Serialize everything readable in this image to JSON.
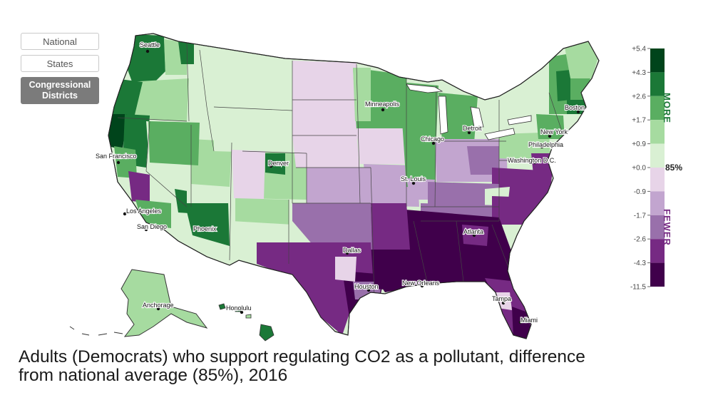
{
  "view_toggle": {
    "national": "National",
    "states": "States",
    "districts_line1": "Congressional",
    "districts_line2": "Districts",
    "active": "Congressional Districts"
  },
  "legend": {
    "ticks": [
      "+5.4",
      "+4.3",
      "+2.6",
      "+1.7",
      "+0.9",
      "+0.0",
      "-0.9",
      "-1.7",
      "-2.6",
      "-4.3",
      "-11.5"
    ],
    "more_label": "MORE",
    "fewer_label": "FEWER",
    "average_label": "85%",
    "colors": [
      "#00441b",
      "#1b7837",
      "#5aae61",
      "#a6dba0",
      "#d9f0d3",
      "#e7d4e8",
      "#c2a5cf",
      "#9970ab",
      "#762a83",
      "#40004b"
    ],
    "more_color": "#1b7837",
    "fewer_color": "#762a83"
  },
  "cities": {
    "seattle": "Seattle",
    "minneapolis": "Minneapolis",
    "boston": "Boston",
    "new_york": "New York",
    "chicago": "Chicago",
    "detroit": "Detroit",
    "philadelphia": "Philadelphia",
    "washington": "Washington D.C.",
    "san_francisco": "San Francisco",
    "denver": "Denver",
    "st_louis": "St. Louis",
    "los_angeles": "Los Angeles",
    "san_diego": "San Diego",
    "phoenix": "Phoenix",
    "atlanta": "Atlanta",
    "dallas": "Dallas",
    "houston": "Houston",
    "new_orleans": "New Orleans",
    "tampa": "Tampa",
    "miami": "Miami",
    "anchorage": "Anchorage",
    "honolulu": "Honolulu"
  },
  "caption": {
    "line1": "Adults (Democrats) who support regulating CO2 as a pollutant, difference",
    "line2": "from national average (85%), 2016"
  }
}
